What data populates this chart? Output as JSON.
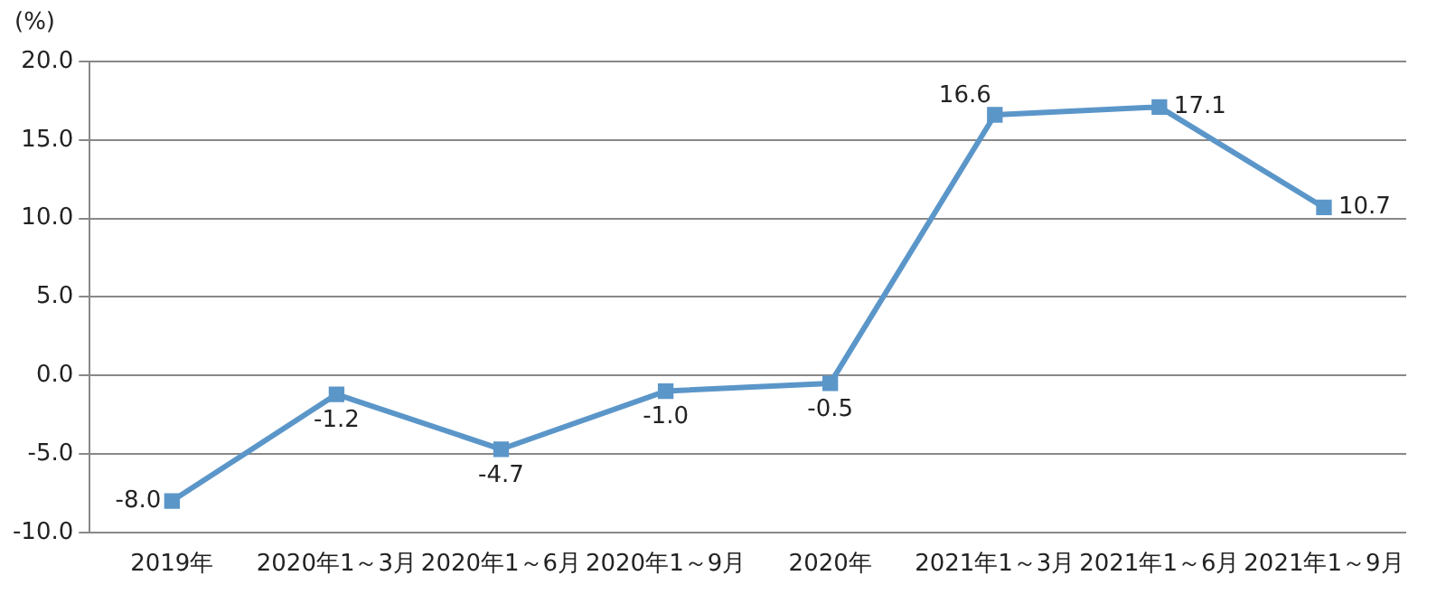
{
  "chart_data": {
    "type": "line",
    "ylabel": "(%)",
    "categories": [
      "2019年",
      "2020年1～3月",
      "2020年1～6月",
      "2020年1～9月",
      "2020年",
      "2021年1～3月",
      "2021年1～6月",
      "2021年1～9月"
    ],
    "series": [
      {
        "color": "#5b96c9",
        "values": [
          -8.0,
          -1.2,
          -4.7,
          -1.0,
          -0.5,
          16.6,
          17.1,
          10.7
        ],
        "value_labels": [
          "-8.0",
          "-1.2",
          "-4.7",
          "-1.0",
          "-0.5",
          "16.6",
          "17.1",
          "10.7"
        ]
      }
    ],
    "ylim": [
      -10,
      20
    ],
    "yticks": [
      {
        "value": -10,
        "label": "-10.0"
      },
      {
        "value": -5,
        "label": "-5.0"
      },
      {
        "value": 0,
        "label": "0.0"
      },
      {
        "value": 5,
        "label": "5.0"
      },
      {
        "value": 10,
        "label": "10.0"
      },
      {
        "value": 15,
        "label": "15.0"
      },
      {
        "value": 20,
        "label": "20.0"
      }
    ],
    "grid": "y",
    "marker": "square",
    "line_style": "solid",
    "legend": false
  }
}
